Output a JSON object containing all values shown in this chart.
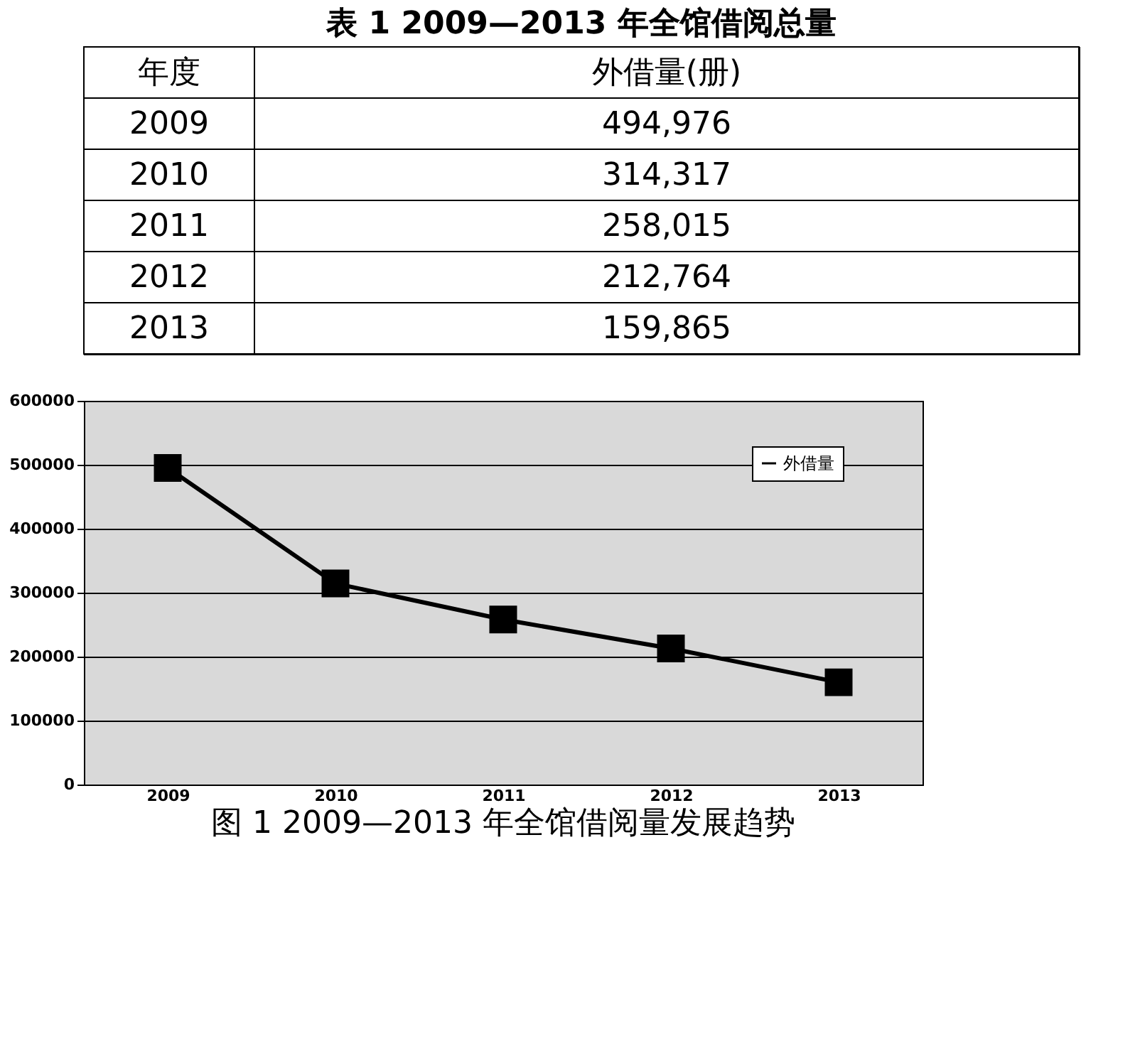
{
  "chart_data": {
    "type": "line",
    "title": "表 1    2009—2013 年全馆借阅总量",
    "categories": [
      "2009",
      "2010",
      "2011",
      "2012",
      "2013"
    ],
    "series": [
      {
        "name": "外借量",
        "color": "#000000",
        "values": [
          494976,
          314317,
          258015,
          212764,
          159865
        ]
      }
    ],
    "value_labels": [
      "494,976",
      "314,317",
      "258,015",
      "212,764",
      "159,865"
    ],
    "annotations": [
      "年度",
      "外借量(册)",
      "图 1    2009—2013 年全馆借阅量发展趋势"
    ],
    "ylim": [
      0,
      600000
    ],
    "yticks": [
      0,
      100000,
      200000,
      300000,
      400000,
      500000,
      600000
    ],
    "grid": "y",
    "legend": "top right",
    "marker": "square",
    "line_style": "solid"
  }
}
